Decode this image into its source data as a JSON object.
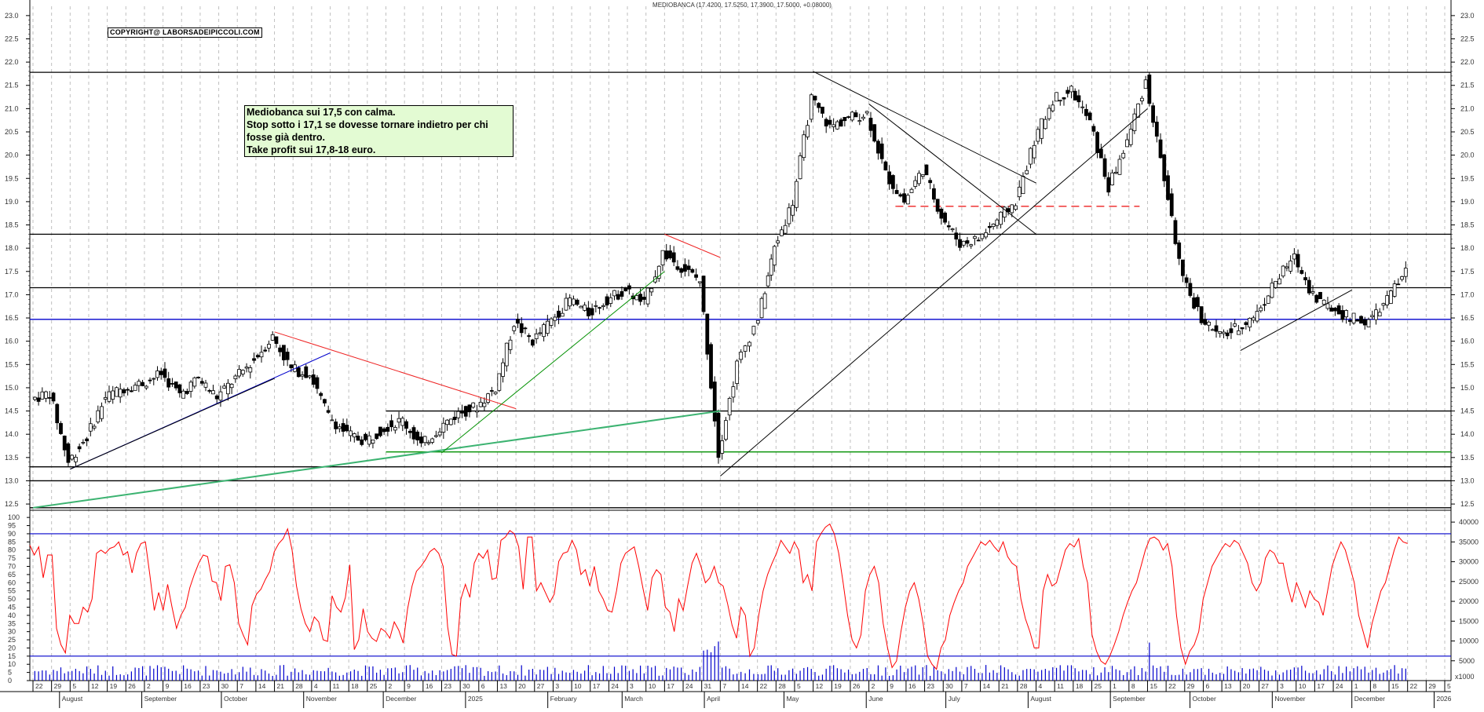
{
  "header": {
    "title": "MEDIOBANCA (17.4200, 17.5250, 17.3900, 17.5000, +0.08000)",
    "copyright": "COPYRIGHT@ LABORSADEIPICCOLI.COM"
  },
  "annotation": {
    "lines": [
      "Mediobanca sui 17,5 con calma.",
      "Stop sotto i 17,1 se dovesse tornare indietro per chi",
      "fosse già dentro.",
      "Take profit sui 17,8-18 euro."
    ],
    "background": "#e3fbd3"
  },
  "colors": {
    "candle_up": "#ffffff",
    "candle_down": "#000000",
    "oscillator": "#ff0000",
    "volume": "#0000cc",
    "blue_level": "#0000cc",
    "green_level": "#009000",
    "green_trend": "#3cb371",
    "red_trend": "#ee2222",
    "grid": "#c0c0c0"
  },
  "chart_data": [
    {
      "type": "candlestick",
      "title": "MEDIOBANCA (17.4200, 17.5250, 17.3900, 17.5000, +0.08000)",
      "last": {
        "open": 17.42,
        "high": 17.525,
        "low": 17.39,
        "close": 17.5,
        "change": 0.08
      },
      "y_axis": {
        "side": "right",
        "range": [
          12.4,
          23.2
        ],
        "ticks": [
          12.5,
          13.0,
          13.5,
          14.0,
          14.5,
          15.0,
          15.5,
          16.0,
          16.5,
          17.0,
          17.5,
          18.0,
          18.5,
          19.0,
          19.5,
          20.0,
          20.5,
          21.0,
          21.5,
          22.0,
          22.5,
          23.0
        ]
      },
      "x_axis": {
        "day_ticks": [
          "22",
          "29",
          "5",
          "12",
          "19",
          "26",
          "2",
          "9",
          "16",
          "23",
          "30",
          "7",
          "14",
          "21",
          "28",
          "4",
          "11",
          "18",
          "25",
          "2",
          "9",
          "16",
          "23",
          "30",
          "6",
          "13",
          "20",
          "27",
          "3",
          "10",
          "17",
          "24",
          "3",
          "10",
          "17",
          "24",
          "31",
          "7",
          "14",
          "22",
          "28",
          "5",
          "12",
          "19",
          "26",
          "2",
          "9",
          "16",
          "23",
          "30",
          "7",
          "14",
          "21",
          "28",
          "4",
          "11",
          "18",
          "25",
          "1",
          "8",
          "15",
          "22",
          "29",
          "6",
          "13",
          "20",
          "27",
          "3",
          "10",
          "17",
          "24",
          "1",
          "8",
          "15",
          "22",
          "29",
          "5"
        ],
        "month_labels": [
          "August",
          "September",
          "October",
          "November",
          "December",
          "2025",
          "February",
          "March",
          "April",
          "May",
          "June",
          "July",
          "August",
          "September",
          "October",
          "November",
          "December",
          "2026"
        ]
      },
      "horizontal_levels": [
        {
          "price": 21.78,
          "color": "#000000"
        },
        {
          "price": 18.3,
          "color": "#000000"
        },
        {
          "price": 17.15,
          "color": "#000000"
        },
        {
          "price": 16.47,
          "color": "#0000cc"
        },
        {
          "price": 14.5,
          "color": "#000000",
          "from_date": "Dec 2024"
        },
        {
          "price": 13.62,
          "color": "#009000",
          "from_date": "Dec 2024"
        },
        {
          "price": 13.3,
          "color": "#000000"
        },
        {
          "price": 13.0,
          "color": "#000000"
        },
        {
          "price": 12.42,
          "color": "#000000"
        },
        {
          "price": 18.9,
          "color": "#ee2222",
          "style": "dashed",
          "span": "Jun–Sep 2025"
        }
      ],
      "trendlines": [
        {
          "from": [
            "Aug 2024",
            13.25
          ],
          "to": [
            "Nov 2024",
            15.75
          ],
          "color": "#0000cc"
        },
        {
          "from": [
            "Aug 2024",
            13.25
          ],
          "to": [
            "Oct 2024",
            15.2
          ],
          "color": "#000000"
        },
        {
          "from": [
            "Oct 2024",
            16.2
          ],
          "to": [
            "Jan 2025",
            14.55
          ],
          "color": "#ee2222"
        },
        {
          "from": [
            "Jul 2024",
            12.42
          ],
          "to": [
            "Apr 2025",
            14.5
          ],
          "color": "#3cb371",
          "width": 2
        },
        {
          "from": [
            "Dec 2024",
            13.6
          ],
          "to": [
            "Mar 2025",
            17.5
          ],
          "color": "#009000"
        },
        {
          "from": [
            "Mar 2025",
            18.3
          ],
          "to": [
            "Apr 2025",
            17.8
          ],
          "color": "#ee2222"
        },
        {
          "from": [
            "May 2025",
            21.8
          ],
          "to": [
            "Aug 2025",
            19.4
          ],
          "color": "#000000"
        },
        {
          "from": [
            "Jun 2025",
            21.1
          ],
          "to": [
            "Aug 2025",
            18.3
          ],
          "color": "#000000"
        },
        {
          "from": [
            "Apr 2025",
            13.1
          ],
          "to": [
            "Sep 2025",
            21.0
          ],
          "color": "#000000"
        },
        {
          "from": [
            "Oct 2025",
            15.8
          ],
          "to": [
            "Dec 2025",
            17.1
          ],
          "color": "#000000"
        }
      ],
      "close_series_approx": [
        [
          "2024-07-22",
          14.75
        ],
        [
          "2024-07-29",
          14.9
        ],
        [
          "2024-08-05",
          13.4
        ],
        [
          "2024-08-12",
          13.95
        ],
        [
          "2024-08-19",
          14.8
        ],
        [
          "2024-08-26",
          15.0
        ],
        [
          "2024-09-02",
          15.1
        ],
        [
          "2024-09-09",
          15.3
        ],
        [
          "2024-09-16",
          14.85
        ],
        [
          "2024-09-23",
          15.2
        ],
        [
          "2024-09-30",
          14.8
        ],
        [
          "2024-10-07",
          15.2
        ],
        [
          "2024-10-14",
          15.6
        ],
        [
          "2024-10-21",
          16.1
        ],
        [
          "2024-10-28",
          15.4
        ],
        [
          "2024-11-04",
          15.3
        ],
        [
          "2024-11-11",
          14.4
        ],
        [
          "2024-11-18",
          14.0
        ],
        [
          "2024-11-25",
          13.85
        ],
        [
          "2024-12-02",
          14.15
        ],
        [
          "2024-12-09",
          14.3
        ],
        [
          "2024-12-16",
          13.75
        ],
        [
          "2024-12-23",
          14.15
        ],
        [
          "2024-12-30",
          14.45
        ],
        [
          "2025-01-06",
          14.6
        ],
        [
          "2025-01-13",
          15.0
        ],
        [
          "2025-01-20",
          16.4
        ],
        [
          "2025-01-27",
          16.0
        ],
        [
          "2025-02-03",
          16.45
        ],
        [
          "2025-02-10",
          16.9
        ],
        [
          "2025-02-17",
          16.6
        ],
        [
          "2025-02-24",
          16.9
        ],
        [
          "2025-03-03",
          17.1
        ],
        [
          "2025-03-10",
          16.8
        ],
        [
          "2025-03-17",
          17.9
        ],
        [
          "2025-03-24",
          17.6
        ],
        [
          "2025-03-31",
          17.3
        ],
        [
          "2025-04-07",
          13.6
        ],
        [
          "2025-04-14",
          15.5
        ],
        [
          "2025-04-22",
          16.5
        ],
        [
          "2025-04-28",
          18.0
        ],
        [
          "2025-05-05",
          19.0
        ],
        [
          "2025-05-12",
          21.2
        ],
        [
          "2025-05-19",
          20.6
        ],
        [
          "2025-05-26",
          20.8
        ],
        [
          "2025-06-02",
          20.9
        ],
        [
          "2025-06-09",
          19.6
        ],
        [
          "2025-06-16",
          19.0
        ],
        [
          "2025-06-23",
          19.7
        ],
        [
          "2025-06-30",
          18.7
        ],
        [
          "2025-07-07",
          18.1
        ],
        [
          "2025-07-14",
          18.2
        ],
        [
          "2025-07-21",
          18.6
        ],
        [
          "2025-07-28",
          19.0
        ],
        [
          "2025-08-04",
          20.3
        ],
        [
          "2025-08-11",
          21.2
        ],
        [
          "2025-08-18",
          21.4
        ],
        [
          "2025-08-25",
          20.7
        ],
        [
          "2025-09-01",
          19.3
        ],
        [
          "2025-09-08",
          20.3
        ],
        [
          "2025-09-15",
          21.6
        ],
        [
          "2025-09-22",
          19.5
        ],
        [
          "2025-09-29",
          17.3
        ],
        [
          "2025-10-06",
          16.5
        ],
        [
          "2025-10-13",
          16.1
        ],
        [
          "2025-10-20",
          16.3
        ],
        [
          "2025-10-27",
          16.6
        ],
        [
          "2025-11-03",
          17.3
        ],
        [
          "2025-11-10",
          17.8
        ],
        [
          "2025-11-17",
          17.0
        ],
        [
          "2025-11-24",
          16.7
        ],
        [
          "2025-12-01",
          16.5
        ],
        [
          "2025-12-08",
          16.4
        ],
        [
          "2025-12-15",
          16.9
        ],
        [
          "2025-12-22",
          17.5
        ]
      ]
    },
    {
      "type": "line",
      "title": "Oscillator (0-100)",
      "y_axis": {
        "side": "left",
        "range": [
          0,
          102
        ],
        "ticks": [
          0,
          5,
          10,
          15,
          20,
          25,
          30,
          35,
          40,
          45,
          50,
          55,
          60,
          65,
          70,
          75,
          80,
          85,
          90,
          95,
          100
        ]
      },
      "reference_lines": [
        90,
        15
      ],
      "series": [
        {
          "name": "oscillator",
          "color": "#ff0000",
          "values": [
            83,
            77,
            82,
            63,
            77,
            77,
            32,
            22,
            17,
            40,
            35,
            35,
            45,
            42,
            50,
            78,
            80,
            78,
            81,
            82,
            85,
            77,
            79,
            66,
            78,
            84,
            85,
            65,
            43,
            54,
            43,
            59,
            45,
            32,
            40,
            45,
            57,
            65,
            72,
            77,
            76,
            61,
            60,
            49,
            70,
            71,
            60,
            35,
            28,
            22,
            46,
            53,
            56,
            62,
            67,
            79,
            84,
            87,
            93,
            80,
            58,
            44,
            35,
            30,
            39,
            36,
            25,
            24,
            52,
            45,
            42,
            51,
            71,
            19,
            25,
            44,
            30,
            26,
            24,
            32,
            30,
            26,
            36,
            31,
            23,
            44,
            58,
            67,
            70,
            74,
            79,
            81,
            78,
            70,
            33,
            16,
            15,
            50,
            59,
            51,
            72,
            78,
            75,
            80,
            62,
            63,
            86,
            88,
            92,
            90,
            82,
            56,
            88,
            88,
            55,
            60,
            54,
            48,
            53,
            73,
            78,
            79,
            86,
            80,
            65,
            68,
            58,
            70,
            55,
            50,
            43,
            42,
            55,
            72,
            78,
            80,
            82,
            70,
            56,
            43,
            63,
            68,
            65,
            45,
            42,
            30,
            50,
            43,
            58,
            72,
            78,
            70,
            60,
            63,
            70,
            60,
            58,
            47,
            34,
            26,
            45,
            40,
            15,
            20,
            40,
            55,
            65,
            72,
            78,
            86,
            82,
            78,
            85,
            80,
            60,
            65,
            55,
            85,
            90,
            94,
            96,
            90,
            78,
            60,
            40,
            25,
            20,
            28,
            55,
            65,
            70,
            60,
            35,
            20,
            8,
            12,
            30,
            45,
            55,
            60,
            50,
            35,
            15,
            10,
            7,
            20,
            25,
            40,
            48,
            55,
            60,
            70,
            75,
            80,
            85,
            83,
            86,
            82,
            79,
            85,
            76,
            72,
            70,
            50,
            38,
            30,
            20,
            20,
            55,
            65,
            58,
            60,
            70,
            80,
            84,
            82,
            87,
            70,
            60,
            28,
            18,
            12,
            10,
            15,
            22,
            30,
            40,
            48,
            55,
            60,
            70,
            80,
            87,
            88,
            86,
            80,
            84,
            70,
            40,
            20,
            10,
            18,
            22,
            30,
            50,
            60,
            70,
            75,
            80,
            84,
            82,
            86,
            84,
            78,
            72,
            60,
            55,
            60,
            75,
            80,
            78,
            72,
            72,
            58,
            48,
            60,
            53,
            45,
            55,
            50,
            48,
            40,
            55,
            70,
            78,
            85,
            80,
            70,
            60,
            40,
            30,
            20,
            35,
            45,
            55,
            60,
            70,
            80,
            88,
            85,
            84
          ]
        }
      ],
      "volume_overlay": {
        "unit": "x1000",
        "right_axis_ticks": [
          5000,
          10000,
          15000,
          20000,
          25000,
          30000,
          35000,
          40000
        ],
        "note": "blue volume bars, spikes in Apr 2025 and late Sep 2025"
      }
    }
  ]
}
